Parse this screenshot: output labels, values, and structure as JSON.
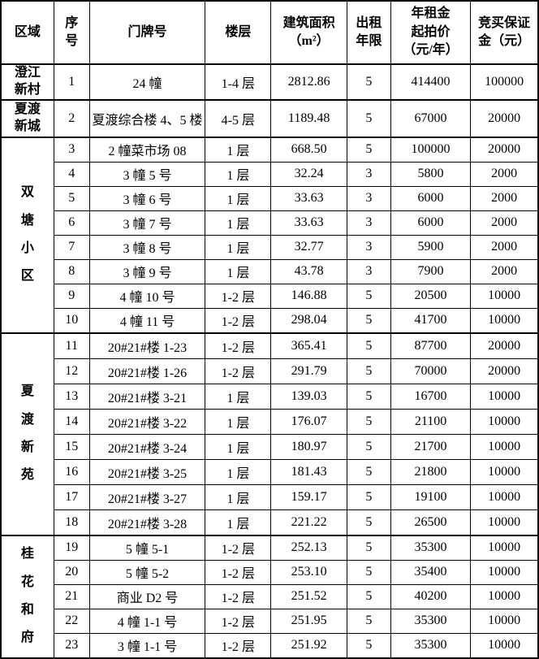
{
  "colors": {
    "border": "#000000",
    "background": "#ffffff",
    "text": "#000000"
  },
  "table": {
    "columns": [
      "区域",
      "序\n号",
      "门牌号",
      "楼层",
      "建筑面积\n（m²）",
      "出租\n年限",
      "年租金\n起拍价\n（元/年）",
      "竞买保证\n金（元）"
    ],
    "groups": [
      {
        "region_label": "澄江\n新村",
        "vertical": false,
        "rows": [
          {
            "no": "1",
            "door": "24 幢",
            "floor": "1-4 层",
            "area": "2812.86",
            "term": "5",
            "rent": "414400",
            "deposit": "100000"
          }
        ]
      },
      {
        "region_label": "夏渡\n新城",
        "vertical": false,
        "rows": [
          {
            "no": "2",
            "door": "夏渡综合楼 4、5 楼",
            "floor": "4-5 层",
            "area": "1189.48",
            "term": "5",
            "rent": "67000",
            "deposit": "20000"
          }
        ]
      },
      {
        "region_label": "双\n塘\n小\n区",
        "vertical": true,
        "rows": [
          {
            "no": "3",
            "door": "2 幢菜市场 08",
            "floor": "1 层",
            "area": "668.50",
            "term": "5",
            "rent": "100000",
            "deposit": "20000"
          },
          {
            "no": "4",
            "door": "3 幢 5 号",
            "floor": "1 层",
            "area": "32.24",
            "term": "3",
            "rent": "5800",
            "deposit": "2000"
          },
          {
            "no": "5",
            "door": "3 幢 6 号",
            "floor": "1 层",
            "area": "33.63",
            "term": "3",
            "rent": "6000",
            "deposit": "2000"
          },
          {
            "no": "6",
            "door": "3 幢 7 号",
            "floor": "1 层",
            "area": "33.63",
            "term": "3",
            "rent": "6000",
            "deposit": "2000"
          },
          {
            "no": "7",
            "door": "3 幢 8 号",
            "floor": "1 层",
            "area": "32.77",
            "term": "3",
            "rent": "5900",
            "deposit": "2000"
          },
          {
            "no": "8",
            "door": "3 幢 9 号",
            "floor": "1 层",
            "area": "43.78",
            "term": "3",
            "rent": "7900",
            "deposit": "2000"
          },
          {
            "no": "9",
            "door": "4 幢 10 号",
            "floor": "1-2 层",
            "area": "146.88",
            "term": "5",
            "rent": "20500",
            "deposit": "10000"
          },
          {
            "no": "10",
            "door": "4 幢 11 号",
            "floor": "1-2 层",
            "area": "298.04",
            "term": "5",
            "rent": "41700",
            "deposit": "10000"
          }
        ]
      },
      {
        "region_label": "夏\n渡\n新\n苑",
        "vertical": true,
        "rows": [
          {
            "no": "11",
            "door": "20#21#楼 1-23",
            "floor": "1-2 层",
            "area": "365.41",
            "term": "5",
            "rent": "87700",
            "deposit": "20000"
          },
          {
            "no": "12",
            "door": "20#21#楼 1-26",
            "floor": "1-2 层",
            "area": "291.79",
            "term": "5",
            "rent": "70000",
            "deposit": "20000"
          },
          {
            "no": "13",
            "door": "20#21#楼 3-21",
            "floor": "1 层",
            "area": "139.03",
            "term": "5",
            "rent": "16700",
            "deposit": "10000"
          },
          {
            "no": "14",
            "door": "20#21#楼 3-22",
            "floor": "1 层",
            "area": "176.07",
            "term": "5",
            "rent": "21100",
            "deposit": "10000"
          },
          {
            "no": "15",
            "door": "20#21#楼 3-24",
            "floor": "1 层",
            "area": "180.97",
            "term": "5",
            "rent": "21700",
            "deposit": "10000"
          },
          {
            "no": "16",
            "door": "20#21#楼 3-25",
            "floor": "1 层",
            "area": "181.43",
            "term": "5",
            "rent": "21800",
            "deposit": "10000"
          },
          {
            "no": "17",
            "door": "20#21#楼 3-27",
            "floor": "1 层",
            "area": "159.17",
            "term": "5",
            "rent": "19100",
            "deposit": "10000"
          },
          {
            "no": "18",
            "door": "20#21#楼 3-28",
            "floor": "1 层",
            "area": "221.22",
            "term": "5",
            "rent": "26500",
            "deposit": "10000"
          }
        ]
      },
      {
        "region_label": "桂\n花\n和\n府",
        "vertical": true,
        "rows": [
          {
            "no": "19",
            "door": "5 幢 5-1",
            "floor": "1-2 层",
            "area": "252.13",
            "term": "5",
            "rent": "35300",
            "deposit": "10000"
          },
          {
            "no": "20",
            "door": "5 幢 5-2",
            "floor": "1-2 层",
            "area": "253.10",
            "term": "5",
            "rent": "35400",
            "deposit": "10000"
          },
          {
            "no": "21",
            "door": "商业 D2 号",
            "floor": "1-2 层",
            "area": "251.52",
            "term": "5",
            "rent": "40200",
            "deposit": "10000"
          },
          {
            "no": "22",
            "door": "4 幢 1-1 号",
            "floor": "1-2 层",
            "area": "251.95",
            "term": "5",
            "rent": "35300",
            "deposit": "10000"
          },
          {
            "no": "23",
            "door": "3 幢 1-1 号",
            "floor": "1-2 层",
            "area": "251.92",
            "term": "5",
            "rent": "35300",
            "deposit": "10000"
          }
        ]
      }
    ]
  }
}
